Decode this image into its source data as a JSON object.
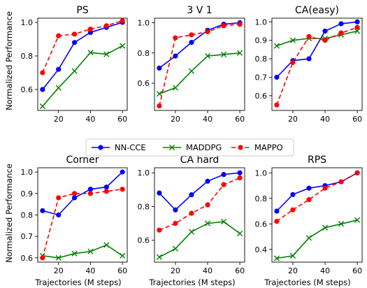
{
  "figure": {
    "x_label": "Trajectories (M steps)",
    "y_label": "Normalized Performance"
  },
  "legend": {
    "location": "center, between rows",
    "entries": [
      {
        "series": "NN-CCE",
        "color": "#0000ff",
        "marker": "circle",
        "linestyle": "solid"
      },
      {
        "series": "MADDPG",
        "color": "#008000",
        "marker": "x",
        "linestyle": "solid"
      },
      {
        "series": "MAPPO",
        "color": "#ff0000",
        "marker": "circle",
        "linestyle": "dashed"
      }
    ]
  },
  "chart_data": [
    {
      "type": "line",
      "title": "PS",
      "x": [
        10,
        20,
        30,
        40,
        50,
        60
      ],
      "xticks": [
        20,
        40,
        60
      ],
      "xlim": [
        7,
        63
      ],
      "ylim": [
        0.475,
        1.025
      ],
      "yticks": [
        0.6,
        0.8,
        1.0
      ],
      "ytick_labels": [
        "0.6",
        "0.8",
        "1.0"
      ],
      "series": [
        {
          "name": "NN-CCE",
          "values": [
            0.6,
            0.72,
            0.88,
            0.94,
            0.97,
            1.0
          ]
        },
        {
          "name": "MADDPG",
          "values": [
            0.5,
            0.61,
            0.71,
            0.82,
            0.81,
            0.86
          ]
        },
        {
          "name": "MAPPO",
          "values": [
            0.7,
            0.92,
            0.93,
            0.96,
            0.98,
            1.01
          ]
        }
      ]
    },
    {
      "type": "line",
      "title": "3 V 1",
      "x": [
        10,
        20,
        30,
        40,
        50,
        60
      ],
      "xticks": [
        20,
        40,
        60
      ],
      "xlim": [
        7,
        63
      ],
      "ylim": [
        0.42,
        1.03
      ],
      "yticks": [
        0.6,
        0.8,
        1.0
      ],
      "ytick_labels": [
        "0.6",
        "0.8",
        "1.0"
      ],
      "series": [
        {
          "name": "NN-CCE",
          "values": [
            0.7,
            0.78,
            0.87,
            0.95,
            0.99,
            1.0
          ]
        },
        {
          "name": "MADDPG",
          "values": [
            0.53,
            0.57,
            0.68,
            0.78,
            0.79,
            0.8
          ]
        },
        {
          "name": "MAPPO",
          "values": [
            0.45,
            0.9,
            0.92,
            0.94,
            0.98,
            0.99
          ]
        }
      ]
    },
    {
      "type": "line",
      "title": "CA(easy)",
      "x": [
        10,
        20,
        30,
        40,
        50,
        60
      ],
      "xticks": [
        20,
        40,
        60
      ],
      "xlim": [
        7,
        63
      ],
      "ylim": [
        0.52,
        1.02
      ],
      "yticks": [
        0.6,
        0.7,
        0.8,
        0.9,
        1.0
      ],
      "ytick_labels": [
        "0.6",
        "0.7",
        "0.8",
        "0.9",
        "1.0"
      ],
      "series": [
        {
          "name": "NN-CCE",
          "values": [
            0.7,
            0.79,
            0.8,
            0.95,
            0.99,
            1.0
          ]
        },
        {
          "name": "MADDPG",
          "values": [
            0.87,
            0.9,
            0.91,
            0.91,
            0.93,
            0.95
          ]
        },
        {
          "name": "MAPPO",
          "values": [
            0.55,
            0.78,
            0.92,
            0.9,
            0.94,
            0.97
          ]
        }
      ]
    },
    {
      "type": "line",
      "title": "Corner",
      "x": [
        10,
        20,
        30,
        40,
        50,
        60
      ],
      "xticks": [
        20,
        40,
        60
      ],
      "xlim": [
        7,
        63
      ],
      "ylim": [
        0.58,
        1.02
      ],
      "yticks": [
        0.6,
        0.7,
        0.8,
        0.9,
        1.0
      ],
      "ytick_labels": [
        "0.6",
        "0.7",
        "0.8",
        "0.9",
        "1.0"
      ],
      "series": [
        {
          "name": "NN-CCE",
          "values": [
            0.82,
            0.8,
            0.88,
            0.92,
            0.93,
            1.0
          ]
        },
        {
          "name": "MADDPG",
          "values": [
            0.61,
            0.6,
            0.62,
            0.63,
            0.66,
            0.61
          ]
        },
        {
          "name": "MAPPO",
          "values": [
            0.6,
            0.88,
            0.9,
            0.9,
            0.91,
            0.92
          ]
        }
      ]
    },
    {
      "type": "line",
      "title": "CA hard",
      "x": [
        10,
        20,
        30,
        40,
        50,
        60
      ],
      "xticks": [
        20,
        40,
        60
      ],
      "xlim": [
        7,
        63
      ],
      "ylim": [
        0.47,
        1.03
      ],
      "yticks": [
        0.6,
        0.8,
        1.0
      ],
      "ytick_labels": [
        "0.6",
        "0.8",
        "1.0"
      ],
      "series": [
        {
          "name": "NN-CCE",
          "values": [
            0.88,
            0.78,
            0.87,
            0.95,
            0.99,
            1.0
          ]
        },
        {
          "name": "MADDPG",
          "values": [
            0.5,
            0.55,
            0.65,
            0.7,
            0.71,
            0.64
          ]
        },
        {
          "name": "MAPPO",
          "values": [
            0.66,
            0.7,
            0.76,
            0.81,
            0.93,
            0.97
          ]
        }
      ]
    },
    {
      "type": "line",
      "title": "RPS",
      "x": [
        10,
        20,
        30,
        40,
        50,
        60
      ],
      "xticks": [
        20,
        40,
        60
      ],
      "xlim": [
        7,
        63
      ],
      "ylim": [
        0.3,
        1.04
      ],
      "yticks": [
        0.4,
        0.6,
        0.8,
        1.0
      ],
      "ytick_labels": [
        "0.4",
        "0.6",
        "0.8",
        "1.0"
      ],
      "series": [
        {
          "name": "NN-CCE",
          "values": [
            0.7,
            0.83,
            0.88,
            0.9,
            0.93,
            1.0
          ]
        },
        {
          "name": "MADDPG",
          "values": [
            0.33,
            0.35,
            0.49,
            0.57,
            0.6,
            0.63
          ]
        },
        {
          "name": "MAPPO",
          "values": [
            0.62,
            0.71,
            0.79,
            0.88,
            0.93,
            1.0
          ]
        }
      ]
    }
  ]
}
